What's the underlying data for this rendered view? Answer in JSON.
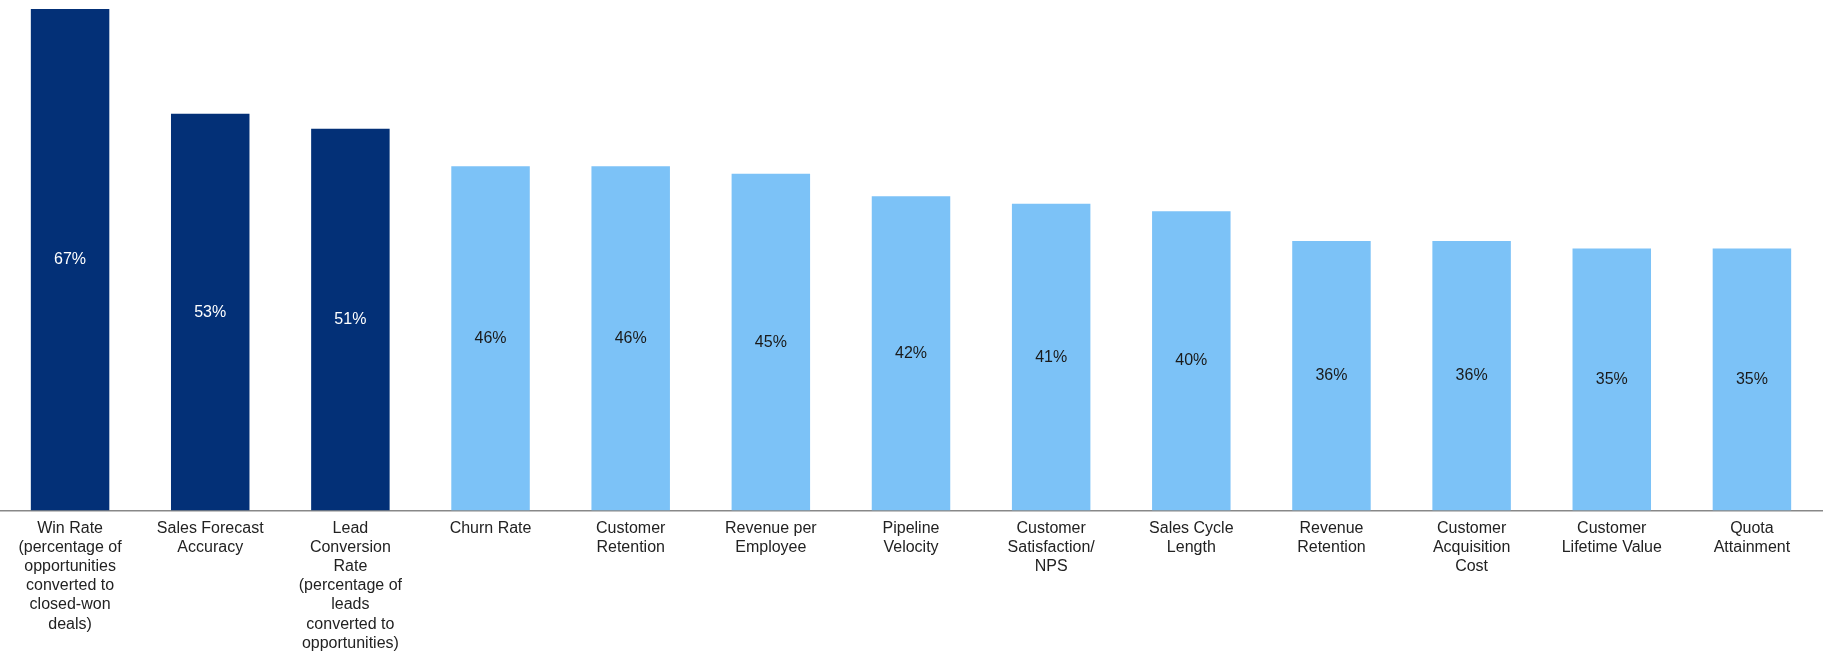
{
  "chart_data": {
    "type": "bar",
    "categories": [
      "Win Rate (percentage of opportunities converted to closed-won deals)",
      "Sales Forecast Accuracy",
      "Lead Conversion Rate (percentage of leads converted to opportunities)",
      "Churn Rate",
      "Customer Retention",
      "Revenue per Employee",
      "Pipeline Velocity",
      "Customer Satisfaction/ NPS",
      "Sales Cycle Length",
      "Revenue Retention",
      "Customer Acquisition Cost",
      "Customer Lifetime Value",
      "Quota Attainment"
    ],
    "values": [
      67,
      53,
      51,
      46,
      46,
      45,
      42,
      41,
      40,
      36,
      36,
      35,
      35
    ],
    "value_labels": [
      "67%",
      "53%",
      "51%",
      "46%",
      "46%",
      "45%",
      "42%",
      "41%",
      "40%",
      "36%",
      "36%",
      "35%",
      "35%"
    ],
    "colors": [
      "#033077",
      "#033077",
      "#033077",
      "#7cc2f7",
      "#7cc2f7",
      "#7cc2f7",
      "#7cc2f7",
      "#7cc2f7",
      "#7cc2f7",
      "#7cc2f7",
      "#7cc2f7",
      "#7cc2f7",
      "#7cc2f7"
    ],
    "tick_labels": "x",
    "grid": false,
    "legend": false
  }
}
